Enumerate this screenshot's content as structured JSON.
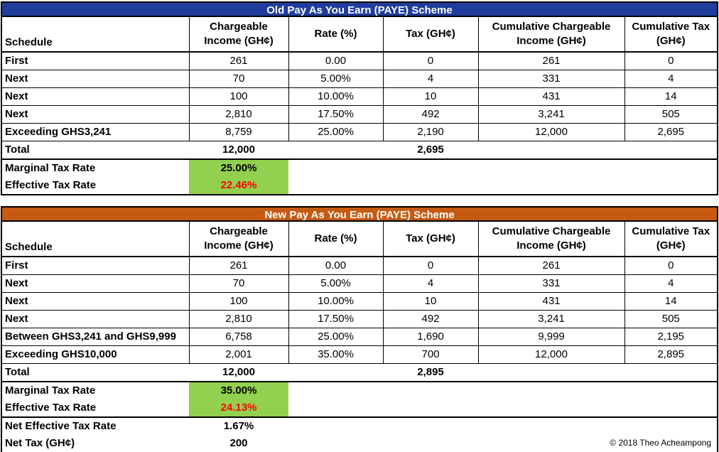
{
  "old": {
    "title": "Old Pay As You Earn (PAYE) Scheme",
    "headers": [
      "Schedule",
      "Chargeable Income (GH¢)",
      "Rate (%)",
      "Tax (GH¢)",
      "Cumulative Chargeable Income (GH¢)",
      "Cumulative Tax (GH¢)"
    ],
    "rows": [
      [
        "First",
        "261",
        "0.00",
        "0",
        "261",
        "0"
      ],
      [
        "Next",
        "70",
        "5.00%",
        "4",
        "331",
        "4"
      ],
      [
        "Next",
        "100",
        "10.00%",
        "10",
        "431",
        "14"
      ],
      [
        "Next",
        "2,810",
        "17.50%",
        "492",
        "3,241",
        "505"
      ],
      [
        "Exceeding GHS3,241",
        "8,759",
        "25.00%",
        "2,190",
        "12,000",
        "2,695"
      ]
    ],
    "total": {
      "label": "Total",
      "income": "12,000",
      "tax": "2,695"
    },
    "marginal": {
      "label": "Marginal Tax Rate",
      "value": "25.00%"
    },
    "effective": {
      "label": "Effective Tax Rate",
      "value": "22.46%"
    }
  },
  "new": {
    "title": "New Pay As You Earn (PAYE) Scheme",
    "headers": [
      "Schedule",
      "Chargeable Income (GH¢)",
      "Rate (%)",
      "Tax (GH¢)",
      "Cumulative Chargeable Income (GH¢)",
      "Cumulative Tax (GH¢)"
    ],
    "rows": [
      [
        "First",
        "261",
        "0.00",
        "0",
        "261",
        "0"
      ],
      [
        "Next",
        "70",
        "5.00%",
        "4",
        "331",
        "4"
      ],
      [
        "Next",
        "100",
        "10.00%",
        "10",
        "431",
        "14"
      ],
      [
        "Next",
        "2,810",
        "17.50%",
        "492",
        "3,241",
        "505"
      ],
      [
        "Between GHS3,241 and GHS9,999",
        "6,758",
        "25.00%",
        "1,690",
        "9,999",
        "2,195"
      ],
      [
        "Exceeding GHS10,000",
        "2,001",
        "35.00%",
        "700",
        "12,000",
        "2,895"
      ]
    ],
    "total": {
      "label": "Total",
      "income": "12,000",
      "tax": "2,895"
    },
    "marginal": {
      "label": "Marginal Tax Rate",
      "value": "35.00%"
    },
    "effective": {
      "label": "Effective Tax Rate",
      "value": "24.13%"
    }
  },
  "summary": {
    "net_rate": {
      "label": "Net Effective Tax Rate",
      "value": "1.67%"
    },
    "net_tax": {
      "label": "Net Tax (GH¢)",
      "value": "200"
    }
  },
  "copyright": "© 2018 Theo Acheampong",
  "colors": {
    "old_header": "#1f3d9c",
    "new_header": "#c55a11",
    "highlight": "#92d050",
    "effective_text": "#ff0000"
  }
}
